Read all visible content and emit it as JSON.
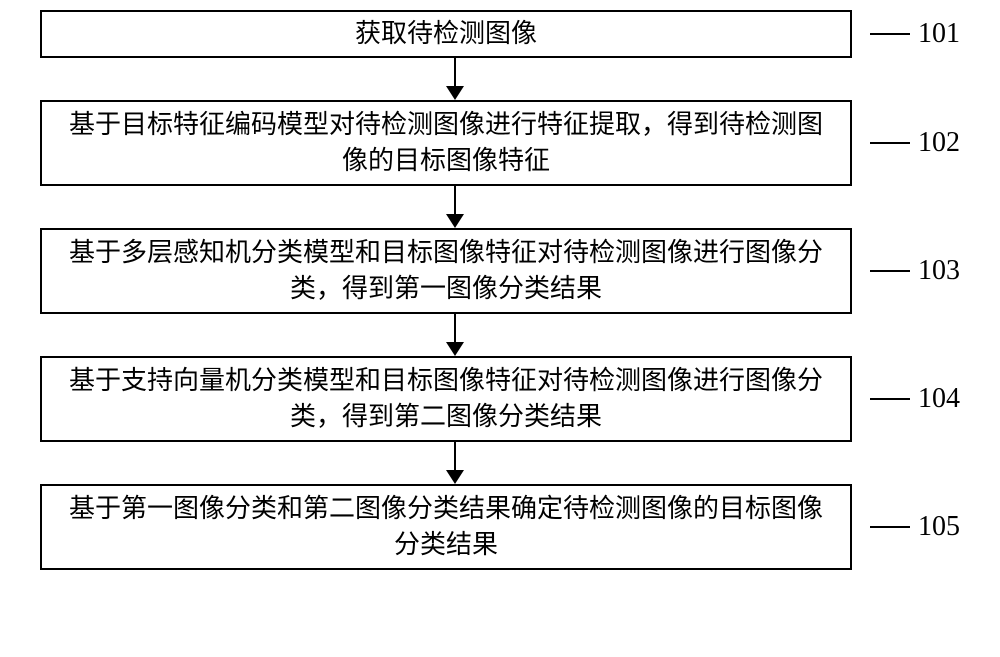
{
  "flowchart": {
    "type": "flowchart",
    "direction": "vertical",
    "background_color": "#ffffff",
    "node_border_color": "#000000",
    "node_border_width": 2,
    "arrow_color": "#000000",
    "font_family": "SimSun",
    "text_fontsize": 26,
    "label_fontsize": 28,
    "steps": [
      {
        "id": "101",
        "text": "获取待检测图像",
        "height": "small"
      },
      {
        "id": "102",
        "text": "基于目标特征编码模型对待检测图像进行特征提取，得到待检测图像的目标图像特征",
        "height": "large"
      },
      {
        "id": "103",
        "text": "基于多层感知机分类模型和目标图像特征对待检测图像进行图像分类，得到第一图像分类结果",
        "height": "large"
      },
      {
        "id": "104",
        "text": "基于支持向量机分类模型和目标图像特征对待检测图像进行图像分类，得到第二图像分类结果",
        "height": "large"
      },
      {
        "id": "105",
        "text": "基于第一图像分类和第二图像分类结果确定待检测图像的目标图像分类结果",
        "height": "large"
      }
    ]
  }
}
